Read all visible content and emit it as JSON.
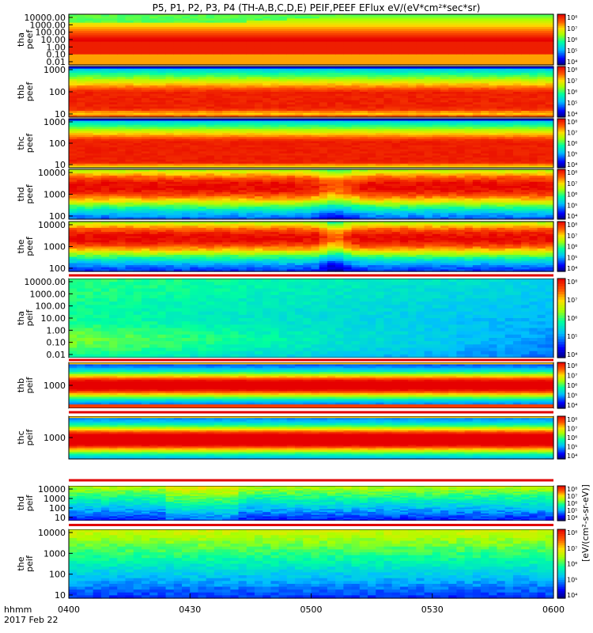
{
  "chart_data": {
    "type": "heatmap",
    "title": "P5, P1, P2, P3, P4 (TH-A,B,C,D,E) PEIF,PEEF EFlux eV/(eV*cm²*sec*sr)",
    "colorbar_label": "[eV/(cm²-s-sr-eV)]",
    "x_ticks": [
      "0400",
      "0430",
      "0500",
      "0530",
      "0600"
    ],
    "x_footer": [
      "hhmm",
      "2017 Feb 22"
    ],
    "colorbar_ticks": [
      "10⁴",
      "10⁵",
      "10⁶",
      "10⁷",
      "10⁸"
    ],
    "panels": [
      {
        "id": "tha-peef",
        "ylabel": [
          "tha",
          "peef"
        ],
        "yticks": [
          "10000.00",
          "1000.00",
          "100.00",
          "10.00",
          "1.00",
          "0.10",
          "0.01"
        ],
        "style": "ea"
      },
      {
        "id": "thb-peef",
        "ylabel": [
          "thb",
          "peef"
        ],
        "yticks": [
          "1000",
          "100",
          "10"
        ],
        "style": "eb"
      },
      {
        "id": "thc-peef",
        "ylabel": [
          "thc",
          "peef"
        ],
        "yticks": [
          "1000",
          "100",
          "10"
        ],
        "style": "ec"
      },
      {
        "id": "thd-peef",
        "ylabel": [
          "thd",
          "peef"
        ],
        "yticks": [
          "10000",
          "1000",
          "100"
        ],
        "style": "ed"
      },
      {
        "id": "the-peef",
        "ylabel": [
          "the",
          "peef"
        ],
        "yticks": [
          "10000",
          "1000",
          "100"
        ],
        "style": "ee"
      },
      {
        "id": "tha-peif",
        "ylabel": [
          "tha",
          "peif"
        ],
        "yticks": [
          "10000.00",
          "1000.00",
          "100.00",
          "10.00",
          "1.00",
          "0.10",
          "0.01"
        ],
        "style": "ia"
      },
      {
        "id": "thb-peif",
        "ylabel": [
          "thb",
          "peif"
        ],
        "yticks": [
          "1000"
        ],
        "style": "ib"
      },
      {
        "id": "thc-peif",
        "ylabel": [
          "thc",
          "peif"
        ],
        "yticks": [
          "1000"
        ],
        "style": "ic"
      },
      {
        "id": "thd-peif",
        "ylabel": [
          "thd",
          "peif"
        ],
        "yticks": [
          "10000",
          "1000",
          "100",
          "10"
        ],
        "style": "id"
      },
      {
        "id": "the-peif",
        "ylabel": [
          "the",
          "peif"
        ],
        "yticks": [
          "10000",
          "1000",
          "100",
          "10"
        ],
        "style": "ie"
      }
    ]
  }
}
